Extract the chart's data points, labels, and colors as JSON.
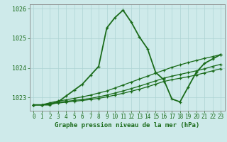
{
  "title": "Graphe pression niveau de la mer (hPa)",
  "bg_color": "#ceeaea",
  "grid_color": "#aed4d4",
  "line_color": "#1a6b1a",
  "spine_color": "#888888",
  "ylim": [
    1022.55,
    1026.15
  ],
  "xlim": [
    -0.5,
    23.5
  ],
  "yticks": [
    1023,
    1024,
    1025,
    1026
  ],
  "xticks": [
    0,
    1,
    2,
    3,
    4,
    5,
    6,
    7,
    8,
    9,
    10,
    11,
    12,
    13,
    14,
    15,
    16,
    17,
    18,
    19,
    20,
    21,
    22,
    23
  ],
  "series": [
    {
      "x": [
        0,
        1,
        2,
        3,
        4,
        5,
        6,
        7,
        8,
        9,
        10,
        11,
        12,
        13,
        14,
        15,
        16,
        17,
        18,
        19,
        20,
        21,
        22,
        23
      ],
      "y": [
        1022.75,
        1022.75,
        1022.75,
        1022.85,
        1023.05,
        1023.25,
        1023.45,
        1023.75,
        1024.05,
        1025.35,
        1025.7,
        1025.95,
        1025.55,
        1025.05,
        1024.65,
        1023.85,
        1023.6,
        1022.95,
        1022.85,
        1023.35,
        1023.85,
        1024.15,
        1024.3,
        1024.45
      ],
      "lw": 1.3,
      "ls": "-",
      "marker": true
    },
    {
      "x": [
        0,
        1,
        2,
        3,
        4,
        5,
        6,
        7,
        8,
        9,
        10,
        11,
        12,
        13,
        14,
        15,
        16,
        17,
        18,
        19,
        20,
        21,
        22,
        23
      ],
      "y": [
        1022.75,
        1022.75,
        1022.82,
        1022.88,
        1022.92,
        1022.97,
        1023.02,
        1023.08,
        1023.15,
        1023.22,
        1023.32,
        1023.42,
        1023.52,
        1023.62,
        1023.72,
        1023.82,
        1023.92,
        1024.02,
        1024.1,
        1024.18,
        1024.25,
        1024.32,
        1024.38,
        1024.45
      ],
      "lw": 0.9,
      "ls": "-",
      "marker": true
    },
    {
      "x": [
        0,
        1,
        2,
        3,
        4,
        5,
        6,
        7,
        8,
        9,
        10,
        11,
        12,
        13,
        14,
        15,
        16,
        17,
        18,
        19,
        20,
        21,
        22,
        23
      ],
      "y": [
        1022.75,
        1022.75,
        1022.8,
        1022.84,
        1022.87,
        1022.9,
        1022.93,
        1022.97,
        1023.02,
        1023.08,
        1023.15,
        1023.22,
        1023.3,
        1023.38,
        1023.47,
        1023.56,
        1023.65,
        1023.72,
        1023.78,
        1023.84,
        1023.9,
        1023.97,
        1024.05,
        1024.12
      ],
      "lw": 0.9,
      "ls": "-",
      "marker": true
    },
    {
      "x": [
        0,
        1,
        2,
        3,
        4,
        5,
        6,
        7,
        8,
        9,
        10,
        11,
        12,
        13,
        14,
        15,
        16,
        17,
        18,
        19,
        20,
        21,
        22,
        23
      ],
      "y": [
        1022.75,
        1022.75,
        1022.78,
        1022.81,
        1022.84,
        1022.87,
        1022.9,
        1022.93,
        1022.97,
        1023.02,
        1023.08,
        1023.14,
        1023.21,
        1023.28,
        1023.36,
        1023.45,
        1023.54,
        1023.6,
        1023.65,
        1023.7,
        1023.76,
        1023.83,
        1023.9,
        1023.97
      ],
      "lw": 0.9,
      "ls": "-",
      "marker": true
    }
  ],
  "xlabel_fontsize": 6.5,
  "xlabel_fontweight": "bold",
  "tick_fontsize": 5.5,
  "ytick_fontsize": 6.0
}
